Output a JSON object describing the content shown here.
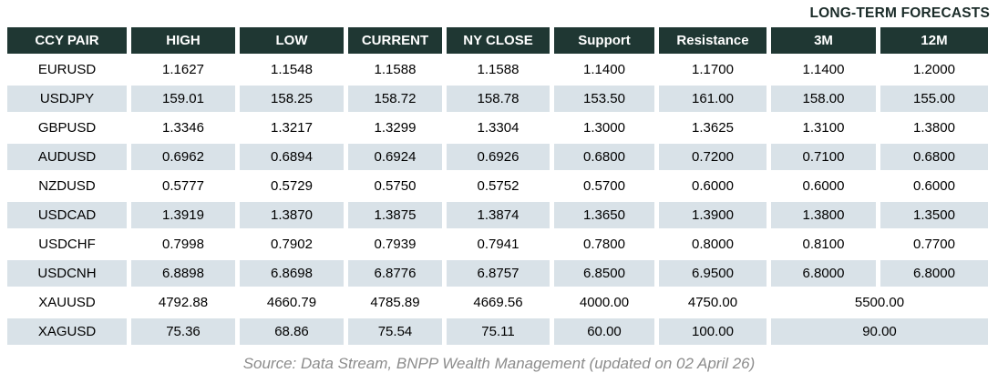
{
  "title": "LONG-TERM FORECASTS",
  "footer": "Source: Data Stream, BNPP Wealth Management (updated on 02 April 26)",
  "colors": {
    "header_bg": "#1F3733",
    "header_text": "#FFFFFF",
    "row_alt_bg": "#D9E2E8",
    "title_text": "#1A2B28",
    "footer_text": "#8C8C8C",
    "body_text": "#000000"
  },
  "table": {
    "columns": [
      "CCY PAIR",
      "HIGH",
      "LOW",
      "CURRENT",
      "NY CLOSE",
      "Support",
      "Resistance",
      "3M",
      "12M"
    ],
    "rows": [
      {
        "cells": [
          "EURUSD",
          "1.1627",
          "1.1548",
          "1.1588",
          "1.1588",
          "1.1400",
          "1.1700",
          "1.1400",
          "1.2000"
        ]
      },
      {
        "cells": [
          "USDJPY",
          "159.01",
          "158.25",
          "158.72",
          "158.78",
          "153.50",
          "161.00",
          "158.00",
          "155.00"
        ]
      },
      {
        "cells": [
          "GBPUSD",
          "1.3346",
          "1.3217",
          "1.3299",
          "1.3304",
          "1.3000",
          "1.3625",
          "1.3100",
          "1.3800"
        ]
      },
      {
        "cells": [
          "AUDUSD",
          "0.6962",
          "0.6894",
          "0.6924",
          "0.6926",
          "0.6800",
          "0.7200",
          "0.7100",
          "0.6800"
        ]
      },
      {
        "cells": [
          "NZDUSD",
          "0.5777",
          "0.5729",
          "0.5750",
          "0.5752",
          "0.5700",
          "0.6000",
          "0.6000",
          "0.6000"
        ]
      },
      {
        "cells": [
          "USDCAD",
          "1.3919",
          "1.3870",
          "1.3875",
          "1.3874",
          "1.3650",
          "1.3900",
          "1.3800",
          "1.3500"
        ]
      },
      {
        "cells": [
          "USDCHF",
          "0.7998",
          "0.7902",
          "0.7939",
          "0.7941",
          "0.7800",
          "0.8000",
          "0.8100",
          "0.7700"
        ]
      },
      {
        "cells": [
          "USDCNH",
          "6.8898",
          "6.8698",
          "6.8776",
          "6.8757",
          "6.8500",
          "6.9500",
          "6.8000",
          "6.8000"
        ]
      },
      {
        "cells": [
          "XAUUSD",
          "4792.88",
          "4660.79",
          "4785.89",
          "4669.56",
          "4000.00",
          "4750.00",
          "5500.00"
        ],
        "merge_last": true
      },
      {
        "cells": [
          "XAGUSD",
          "75.36",
          "68.86",
          "75.54",
          "75.11",
          "60.00",
          "100.00",
          "90.00"
        ],
        "merge_last": true
      }
    ]
  },
  "chart_data": {
    "type": "table",
    "title": "LONG-TERM FORECASTS",
    "columns": [
      "CCY PAIR",
      "HIGH",
      "LOW",
      "CURRENT",
      "NY CLOSE",
      "Support",
      "Resistance",
      "3M",
      "12M"
    ],
    "rows": [
      [
        "EURUSD",
        1.1627,
        1.1548,
        1.1588,
        1.1588,
        1.14,
        1.17,
        1.14,
        1.2
      ],
      [
        "USDJPY",
        159.01,
        158.25,
        158.72,
        158.78,
        153.5,
        161.0,
        158.0,
        155.0
      ],
      [
        "GBPUSD",
        1.3346,
        1.3217,
        1.3299,
        1.3304,
        1.3,
        1.3625,
        1.31,
        1.38
      ],
      [
        "AUDUSD",
        0.6962,
        0.6894,
        0.6924,
        0.6926,
        0.68,
        0.72,
        0.71,
        0.68
      ],
      [
        "NZDUSD",
        0.5777,
        0.5729,
        0.575,
        0.5752,
        0.57,
        0.6,
        0.6,
        0.6
      ],
      [
        "USDCAD",
        1.3919,
        1.387,
        1.3875,
        1.3874,
        1.365,
        1.39,
        1.38,
        1.35
      ],
      [
        "USDCHF",
        0.7998,
        0.7902,
        0.7939,
        0.7941,
        0.78,
        0.8,
        0.81,
        0.77
      ],
      [
        "USDCNH",
        6.8898,
        6.8698,
        6.8776,
        6.8757,
        6.85,
        6.95,
        6.8,
        6.8
      ],
      [
        "XAUUSD",
        4792.88,
        4660.79,
        4785.89,
        4669.56,
        4000.0,
        4750.0,
        5500.0,
        5500.0
      ],
      [
        "XAGUSD",
        75.36,
        68.86,
        75.54,
        75.11,
        60.0,
        100.0,
        90.0,
        90.0
      ]
    ],
    "notes": "XAUUSD and XAGUSD have a single merged forecast value spanning the 3M and 12M columns",
    "annotations": [
      "Source: Data Stream, BNPP Wealth Management (updated on 02 April 26)"
    ]
  }
}
